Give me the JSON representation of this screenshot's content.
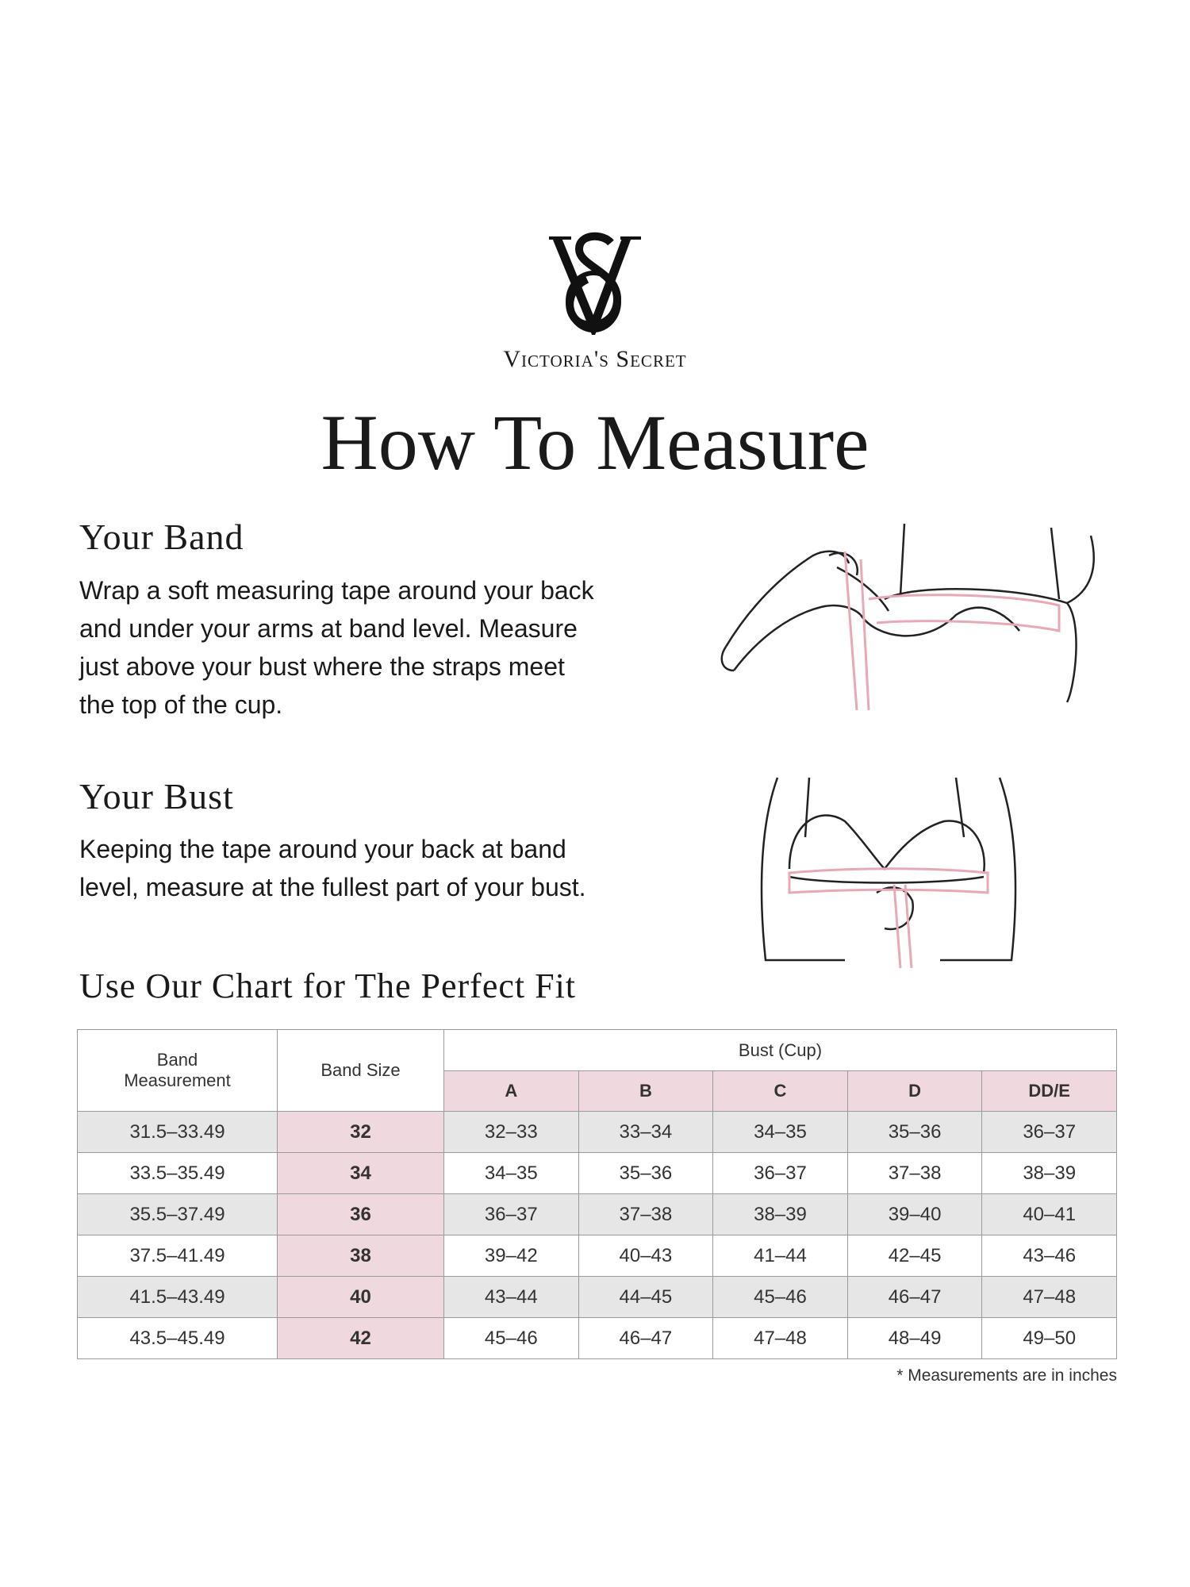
{
  "brand": {
    "name": "Victoria's Secret",
    "monogram": "VS"
  },
  "title": "How To Measure",
  "band": {
    "heading": "Your Band",
    "lines": [
      "Wrap a soft measuring tape around your back",
      "and under your arms at band level.  Measure",
      "just above your bust where the straps meet",
      "the top of the cup."
    ]
  },
  "bust": {
    "heading": "Your Bust",
    "lines": [
      "Keeping the tape around your back at band",
      "level, measure at the fullest part of your bust."
    ]
  },
  "chart_heading": "Use Our Chart for The Perfect Fit",
  "colors": {
    "pink": "#f0d9de",
    "gray": "#e6e6e6",
    "tape": "#e8a9b6"
  },
  "table": {
    "col_band_measurement": "Band Measurement",
    "col_band_size": "Band Size",
    "col_bust": "Bust (Cup)",
    "cups": [
      "A",
      "B",
      "C",
      "D",
      "DD/E"
    ],
    "rows": [
      {
        "measurement": "31.5–33.49",
        "size": "32",
        "cups": [
          "32–33",
          "33–34",
          "34–35",
          "35–36",
          "36–37"
        ]
      },
      {
        "measurement": "33.5–35.49",
        "size": "34",
        "cups": [
          "34–35",
          "35–36",
          "36–37",
          "37–38",
          "38–39"
        ]
      },
      {
        "measurement": "35.5–37.49",
        "size": "36",
        "cups": [
          "36–37",
          "37–38",
          "38–39",
          "39–40",
          "40–41"
        ]
      },
      {
        "measurement": "37.5–41.49",
        "size": "38",
        "cups": [
          "39–42",
          "40–43",
          "41–44",
          "42–45",
          "43–46"
        ]
      },
      {
        "measurement": "41.5–43.49",
        "size": "40",
        "cups": [
          "43–44",
          "44–45",
          "45–46",
          "46–47",
          "47–48"
        ]
      },
      {
        "measurement": "43.5–45.49",
        "size": "42",
        "cups": [
          "45–46",
          "46–47",
          "47–48",
          "48–49",
          "49–50"
        ]
      }
    ]
  },
  "footnote": "* Measurements are in inches"
}
